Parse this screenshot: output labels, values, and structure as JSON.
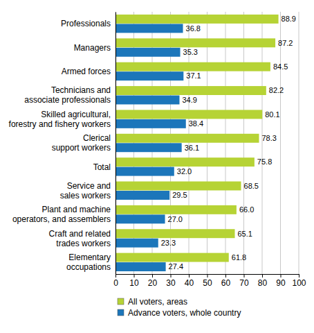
{
  "chart_data": {
    "type": "bar",
    "orientation": "horizontal",
    "categories": [
      "Professionals",
      "Managers",
      "Armed forces",
      "Technicians and\nassociate professionals",
      "Skilled agricultural,\nforestry and fishery workers",
      "Clerical\nsupport workers",
      "Total",
      "Service and\nsales workers",
      "Plant and machine\noperators, and assemblers",
      "Craft and related\ntrades workers",
      "Elementary\noccupations"
    ],
    "series": [
      {
        "name": "All voters, areas",
        "color": "#b6d335",
        "values": [
          88.9,
          87.2,
          84.5,
          82.2,
          80.1,
          78.3,
          75.8,
          68.5,
          66.0,
          65.1,
          61.8
        ],
        "value_labels": [
          "88.9",
          "87.2",
          "84.5",
          "82.2",
          "80.1",
          "78.3",
          "75.8",
          "68.5",
          "66.0",
          "65.1",
          "61.8"
        ]
      },
      {
        "name": "Advance voters, whole country",
        "color": "#1c76ba",
        "values": [
          36.8,
          35.3,
          37.1,
          34.9,
          38.4,
          36.1,
          32.0,
          29.5,
          27.0,
          23.3,
          27.4
        ],
        "value_labels": [
          "36.8",
          "35.3",
          "37.1",
          "34.9",
          "38.4",
          "36.1",
          "32.0",
          "29.5",
          "27.0",
          "23.3",
          "27.4"
        ]
      }
    ],
    "xlim": [
      0,
      100
    ],
    "xticks": [
      0,
      10,
      20,
      30,
      40,
      50,
      60,
      70,
      80,
      90,
      100
    ],
    "grid": true,
    "data_labels": true,
    "legend": "bottom"
  }
}
